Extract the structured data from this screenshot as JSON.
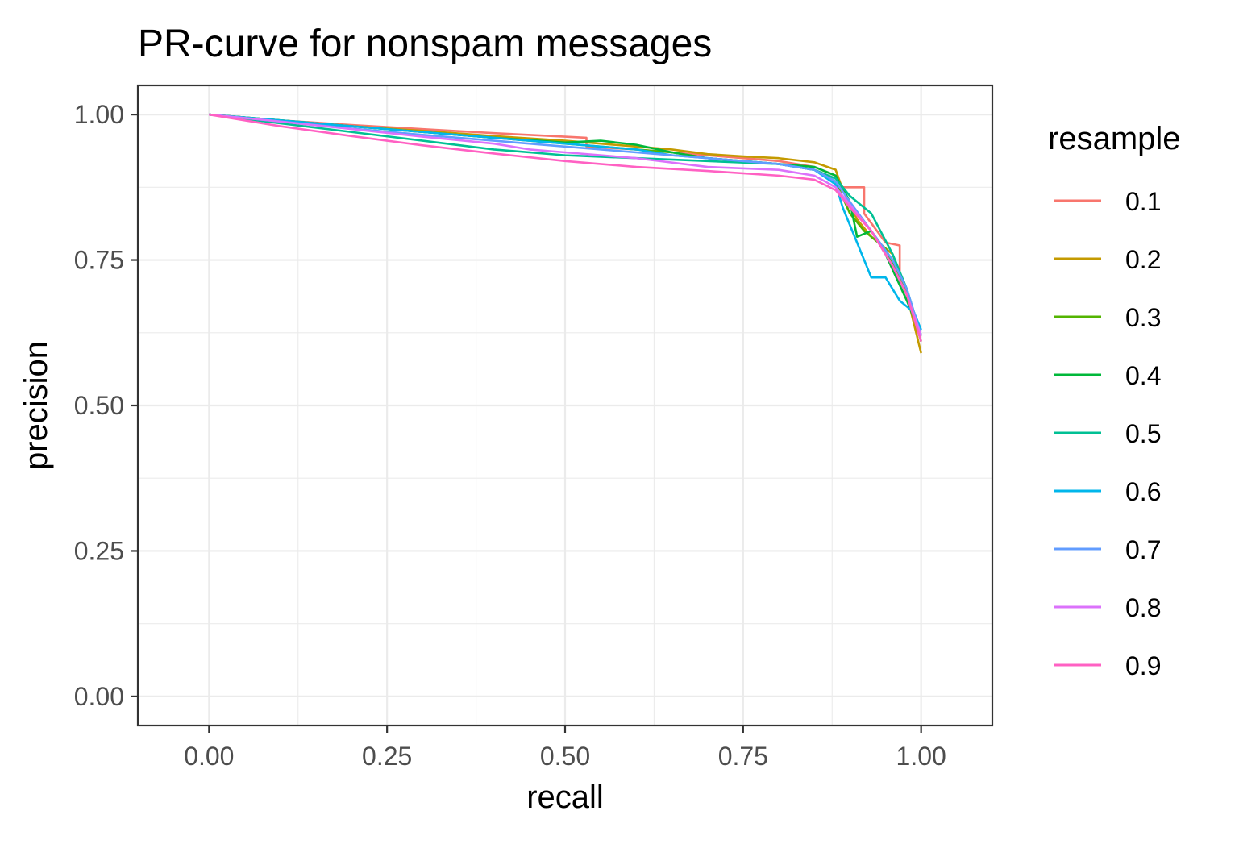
{
  "chart_data": {
    "type": "line",
    "title": "PR-curve for nonspam messages",
    "xlabel": "recall",
    "ylabel": "precision",
    "xlim": [
      -0.1,
      1.1
    ],
    "ylim": [
      -0.05,
      1.05
    ],
    "x_ticks": [
      0,
      0.25,
      0.5,
      0.75,
      1
    ],
    "x_tick_labels": [
      "0.00",
      "0.25",
      "0.50",
      "0.75",
      "1.00"
    ],
    "y_ticks": [
      0,
      0.25,
      0.5,
      0.75,
      1
    ],
    "y_tick_labels": [
      "0.00",
      "0.25",
      "0.50",
      "0.75",
      "1.00"
    ],
    "grid": true,
    "legend": {
      "title": "resample",
      "position": "right"
    },
    "series": [
      {
        "name": "0.1",
        "color": "#F8766D",
        "points": [
          [
            0,
            1.0
          ],
          [
            0.1,
            0.99
          ],
          [
            0.2,
            0.982
          ],
          [
            0.3,
            0.975
          ],
          [
            0.4,
            0.968
          ],
          [
            0.5,
            0.962
          ],
          [
            0.53,
            0.96
          ],
          [
            0.53,
            0.945
          ],
          [
            0.6,
            0.94
          ],
          [
            0.65,
            0.935
          ],
          [
            0.7,
            0.93
          ],
          [
            0.75,
            0.925
          ],
          [
            0.8,
            0.92
          ],
          [
            0.85,
            0.91
          ],
          [
            0.88,
            0.895
          ],
          [
            0.89,
            0.875
          ],
          [
            0.92,
            0.875
          ],
          [
            0.92,
            0.83
          ],
          [
            0.95,
            0.78
          ],
          [
            0.97,
            0.775
          ],
          [
            0.97,
            0.72
          ],
          [
            0.99,
            0.66
          ],
          [
            1.0,
            0.62
          ]
        ]
      },
      {
        "name": "0.2",
        "color": "#C49A00",
        "points": [
          [
            0,
            1.0
          ],
          [
            0.1,
            0.99
          ],
          [
            0.2,
            0.98
          ],
          [
            0.3,
            0.972
          ],
          [
            0.4,
            0.963
          ],
          [
            0.5,
            0.955
          ],
          [
            0.55,
            0.95
          ],
          [
            0.6,
            0.945
          ],
          [
            0.65,
            0.94
          ],
          [
            0.7,
            0.932
          ],
          [
            0.75,
            0.928
          ],
          [
            0.8,
            0.925
          ],
          [
            0.85,
            0.918
          ],
          [
            0.88,
            0.905
          ],
          [
            0.89,
            0.87
          ],
          [
            0.91,
            0.82
          ],
          [
            0.93,
            0.79
          ],
          [
            0.96,
            0.76
          ],
          [
            0.98,
            0.69
          ],
          [
            1.0,
            0.59
          ]
        ]
      },
      {
        "name": "0.3",
        "color": "#53B400",
        "points": [
          [
            0,
            1.0
          ],
          [
            0.1,
            0.99
          ],
          [
            0.2,
            0.98
          ],
          [
            0.3,
            0.97
          ],
          [
            0.4,
            0.96
          ],
          [
            0.5,
            0.95
          ],
          [
            0.55,
            0.945
          ],
          [
            0.6,
            0.94
          ],
          [
            0.65,
            0.935
          ],
          [
            0.7,
            0.925
          ],
          [
            0.75,
            0.92
          ],
          [
            0.8,
            0.915
          ],
          [
            0.85,
            0.905
          ],
          [
            0.88,
            0.885
          ],
          [
            0.9,
            0.83
          ],
          [
            0.92,
            0.8
          ],
          [
            0.95,
            0.77
          ],
          [
            0.98,
            0.69
          ],
          [
            1.0,
            0.61
          ]
        ]
      },
      {
        "name": "0.4",
        "color": "#00B83A",
        "points": [
          [
            0,
            1.0
          ],
          [
            0.1,
            0.99
          ],
          [
            0.2,
            0.98
          ],
          [
            0.3,
            0.97
          ],
          [
            0.4,
            0.96
          ],
          [
            0.5,
            0.952
          ],
          [
            0.55,
            0.955
          ],
          [
            0.6,
            0.948
          ],
          [
            0.65,
            0.935
          ],
          [
            0.7,
            0.925
          ],
          [
            0.75,
            0.92
          ],
          [
            0.8,
            0.915
          ],
          [
            0.85,
            0.91
          ],
          [
            0.88,
            0.895
          ],
          [
            0.9,
            0.85
          ],
          [
            0.91,
            0.79
          ],
          [
            0.93,
            0.8
          ],
          [
            0.95,
            0.76
          ],
          [
            0.98,
            0.68
          ],
          [
            1.0,
            0.62
          ]
        ]
      },
      {
        "name": "0.5",
        "color": "#00C094",
        "points": [
          [
            0,
            1.0
          ],
          [
            0.1,
            0.985
          ],
          [
            0.2,
            0.97
          ],
          [
            0.3,
            0.955
          ],
          [
            0.4,
            0.94
          ],
          [
            0.5,
            0.93
          ],
          [
            0.6,
            0.925
          ],
          [
            0.7,
            0.92
          ],
          [
            0.8,
            0.915
          ],
          [
            0.85,
            0.905
          ],
          [
            0.88,
            0.89
          ],
          [
            0.9,
            0.86
          ],
          [
            0.93,
            0.83
          ],
          [
            0.96,
            0.76
          ],
          [
            0.98,
            0.7
          ],
          [
            1.0,
            0.62
          ]
        ]
      },
      {
        "name": "0.6",
        "color": "#00B6EB",
        "points": [
          [
            0,
            1.0
          ],
          [
            0.1,
            0.99
          ],
          [
            0.2,
            0.98
          ],
          [
            0.3,
            0.97
          ],
          [
            0.4,
            0.96
          ],
          [
            0.5,
            0.95
          ],
          [
            0.6,
            0.94
          ],
          [
            0.65,
            0.93
          ],
          [
            0.7,
            0.925
          ],
          [
            0.75,
            0.92
          ],
          [
            0.8,
            0.915
          ],
          [
            0.85,
            0.905
          ],
          [
            0.88,
            0.88
          ],
          [
            0.89,
            0.84
          ],
          [
            0.91,
            0.78
          ],
          [
            0.93,
            0.72
          ],
          [
            0.95,
            0.72
          ],
          [
            0.97,
            0.68
          ],
          [
            0.99,
            0.66
          ],
          [
            1.0,
            0.63
          ]
        ]
      },
      {
        "name": "0.7",
        "color": "#619CFF",
        "points": [
          [
            0,
            1.0
          ],
          [
            0.1,
            0.988
          ],
          [
            0.2,
            0.976
          ],
          [
            0.3,
            0.965
          ],
          [
            0.4,
            0.955
          ],
          [
            0.5,
            0.945
          ],
          [
            0.6,
            0.935
          ],
          [
            0.7,
            0.925
          ],
          [
            0.8,
            0.915
          ],
          [
            0.85,
            0.905
          ],
          [
            0.88,
            0.885
          ],
          [
            0.9,
            0.85
          ],
          [
            0.93,
            0.8
          ],
          [
            0.96,
            0.75
          ],
          [
            0.98,
            0.7
          ],
          [
            1.0,
            0.62
          ]
        ]
      },
      {
        "name": "0.8",
        "color": "#DB72FB",
        "points": [
          [
            0,
            1.0
          ],
          [
            0.1,
            0.988
          ],
          [
            0.2,
            0.975
          ],
          [
            0.3,
            0.962
          ],
          [
            0.4,
            0.95
          ],
          [
            0.45,
            0.94
          ],
          [
            0.5,
            0.935
          ],
          [
            0.6,
            0.925
          ],
          [
            0.7,
            0.91
          ],
          [
            0.8,
            0.905
          ],
          [
            0.85,
            0.895
          ],
          [
            0.88,
            0.875
          ],
          [
            0.9,
            0.845
          ],
          [
            0.93,
            0.8
          ],
          [
            0.96,
            0.74
          ],
          [
            0.98,
            0.69
          ],
          [
            1.0,
            0.62
          ]
        ]
      },
      {
        "name": "0.9",
        "color": "#FF61C3",
        "points": [
          [
            0,
            1.0
          ],
          [
            0.1,
            0.98
          ],
          [
            0.2,
            0.963
          ],
          [
            0.3,
            0.947
          ],
          [
            0.4,
            0.933
          ],
          [
            0.5,
            0.92
          ],
          [
            0.6,
            0.91
          ],
          [
            0.7,
            0.903
          ],
          [
            0.8,
            0.895
          ],
          [
            0.85,
            0.888
          ],
          [
            0.88,
            0.87
          ],
          [
            0.9,
            0.84
          ],
          [
            0.93,
            0.8
          ],
          [
            0.96,
            0.74
          ],
          [
            0.98,
            0.69
          ],
          [
            1.0,
            0.61
          ]
        ]
      }
    ]
  }
}
